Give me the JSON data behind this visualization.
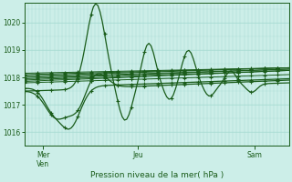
{
  "xlabel": "Pression niveau de la mer( hPa )",
  "xtick_labels": [
    "Mer\nVen",
    "Jeu",
    "Sam"
  ],
  "xtick_positions": [
    0.07,
    0.43,
    0.87
  ],
  "ylim": [
    1015.5,
    1020.7
  ],
  "yticks": [
    1016,
    1017,
    1018,
    1019,
    1020
  ],
  "bg_color": "#cceee8",
  "grid_color_v": "#aaddd4",
  "grid_color_h": "#aaddd4",
  "line_color": "#1a5c1a",
  "figsize": [
    3.2,
    2.0
  ],
  "dpi": 100
}
